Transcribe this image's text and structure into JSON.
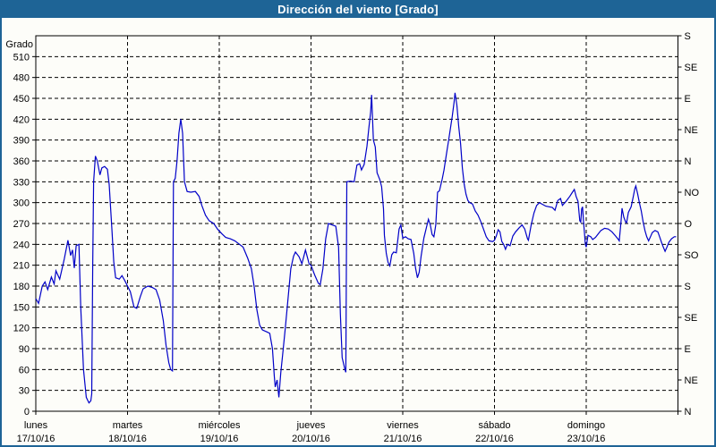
{
  "window": {
    "title": "Dirección del viento [Grado]"
  },
  "colors": {
    "titlebar_bg": "#1e6496",
    "title_text": "#ffffff",
    "window_border": "#1e6496",
    "background": "#fdfdf9",
    "axis": "#000000",
    "grid": "#000000",
    "line": "#0000c8"
  },
  "chart_data": {
    "type": "line",
    "title": "Dirección del viento [Grado]",
    "ylabel_left": "Grado",
    "xlabel": "",
    "ylim": [
      0,
      540
    ],
    "xlim_days": [
      0,
      7
    ],
    "grid": "dashed",
    "legend": "none",
    "y_left_ticks": [
      0,
      30,
      60,
      90,
      120,
      150,
      180,
      210,
      240,
      270,
      300,
      330,
      360,
      390,
      420,
      450,
      480,
      510
    ],
    "y_right_ticks": [
      {
        "value": 0,
        "label": "N"
      },
      {
        "value": 45,
        "label": "NE"
      },
      {
        "value": 90,
        "label": "E"
      },
      {
        "value": 135,
        "label": "SE"
      },
      {
        "value": 180,
        "label": "S"
      },
      {
        "value": 225,
        "label": "SO"
      },
      {
        "value": 270,
        "label": "O"
      },
      {
        "value": 315,
        "label": "NO"
      },
      {
        "value": 360,
        "label": "N"
      },
      {
        "value": 405,
        "label": "NE"
      },
      {
        "value": 450,
        "label": "E"
      },
      {
        "value": 495,
        "label": "SE"
      },
      {
        "value": 540,
        "label": "S"
      }
    ],
    "x_categories": [
      {
        "day": "lunes",
        "date": "17/10/16"
      },
      {
        "day": "martes",
        "date": "18/10/16"
      },
      {
        "day": "miércoles",
        "date": "19/10/16"
      },
      {
        "day": "jueves",
        "date": "20/10/16"
      },
      {
        "day": "viernes",
        "date": "21/10/16"
      },
      {
        "day": "sábado",
        "date": "22/10/16"
      },
      {
        "day": "domingo",
        "date": "23/10/16"
      }
    ],
    "series": [
      {
        "name": "Dirección del viento [Grado]",
        "color": "#0000c8",
        "points": [
          [
            0.0,
            162
          ],
          [
            0.03,
            155
          ],
          [
            0.07,
            180
          ],
          [
            0.1,
            186
          ],
          [
            0.13,
            175
          ],
          [
            0.17,
            193
          ],
          [
            0.2,
            183
          ],
          [
            0.22,
            202
          ],
          [
            0.26,
            190
          ],
          [
            0.31,
            219
          ],
          [
            0.35,
            246
          ],
          [
            0.38,
            224
          ],
          [
            0.4,
            232
          ],
          [
            0.42,
            206
          ],
          [
            0.44,
            238
          ],
          [
            0.47,
            240
          ],
          [
            0.49,
            150
          ],
          [
            0.52,
            60
          ],
          [
            0.55,
            20
          ],
          [
            0.58,
            12
          ],
          [
            0.6,
            15
          ],
          [
            0.61,
            25
          ],
          [
            0.62,
            210
          ],
          [
            0.63,
            330
          ],
          [
            0.65,
            367
          ],
          [
            0.67,
            360
          ],
          [
            0.7,
            340
          ],
          [
            0.72,
            350
          ],
          [
            0.75,
            352
          ],
          [
            0.78,
            348
          ],
          [
            0.8,
            326
          ],
          [
            0.83,
            260
          ],
          [
            0.85,
            215
          ],
          [
            0.87,
            192
          ],
          [
            0.91,
            190
          ],
          [
            0.94,
            195
          ],
          [
            0.97,
            188
          ],
          [
            1.0,
            180
          ],
          [
            1.03,
            172
          ],
          [
            1.07,
            150
          ],
          [
            1.1,
            148
          ],
          [
            1.14,
            165
          ],
          [
            1.17,
            176
          ],
          [
            1.22,
            180
          ],
          [
            1.27,
            178
          ],
          [
            1.31,
            175
          ],
          [
            1.35,
            160
          ],
          [
            1.39,
            130
          ],
          [
            1.42,
            95
          ],
          [
            1.45,
            70
          ],
          [
            1.47,
            60
          ],
          [
            1.49,
            58
          ],
          [
            1.5,
            330
          ],
          [
            1.52,
            335
          ],
          [
            1.54,
            360
          ],
          [
            1.56,
            400
          ],
          [
            1.58,
            420
          ],
          [
            1.6,
            400
          ],
          [
            1.62,
            330
          ],
          [
            1.65,
            316
          ],
          [
            1.69,
            315
          ],
          [
            1.74,
            316
          ],
          [
            1.78,
            309
          ],
          [
            1.81,
            296
          ],
          [
            1.85,
            282
          ],
          [
            1.89,
            274
          ],
          [
            1.94,
            270
          ],
          [
            1.98,
            262
          ],
          [
            2.03,
            255
          ],
          [
            2.07,
            250
          ],
          [
            2.12,
            248
          ],
          [
            2.17,
            245
          ],
          [
            2.22,
            240
          ],
          [
            2.26,
            236
          ],
          [
            2.31,
            220
          ],
          [
            2.35,
            205
          ],
          [
            2.38,
            180
          ],
          [
            2.41,
            146
          ],
          [
            2.44,
            124
          ],
          [
            2.47,
            117
          ],
          [
            2.52,
            114
          ],
          [
            2.55,
            112
          ],
          [
            2.58,
            90
          ],
          [
            2.6,
            50
          ],
          [
            2.61,
            35
          ],
          [
            2.63,
            45
          ],
          [
            2.65,
            20
          ],
          [
            2.67,
            55
          ],
          [
            2.69,
            80
          ],
          [
            2.72,
            120
          ],
          [
            2.75,
            163
          ],
          [
            2.78,
            205
          ],
          [
            2.81,
            223
          ],
          [
            2.83,
            229
          ],
          [
            2.87,
            222
          ],
          [
            2.9,
            212
          ],
          [
            2.94,
            232
          ],
          [
            2.98,
            212
          ],
          [
            3.0,
            210
          ],
          [
            3.04,
            196
          ],
          [
            3.08,
            184
          ],
          [
            3.1,
            182
          ],
          [
            3.13,
            205
          ],
          [
            3.16,
            248
          ],
          [
            3.19,
            270
          ],
          [
            3.23,
            268
          ],
          [
            3.27,
            266
          ],
          [
            3.3,
            236
          ],
          [
            3.32,
            140
          ],
          [
            3.34,
            77
          ],
          [
            3.37,
            60
          ],
          [
            3.38,
            56
          ],
          [
            3.39,
            330
          ],
          [
            3.43,
            331
          ],
          [
            3.47,
            330
          ],
          [
            3.5,
            354
          ],
          [
            3.53,
            356
          ],
          [
            3.55,
            347
          ],
          [
            3.58,
            355
          ],
          [
            3.61,
            381
          ],
          [
            3.63,
            407
          ],
          [
            3.65,
            430
          ],
          [
            3.66,
            455
          ],
          [
            3.68,
            390
          ],
          [
            3.7,
            380
          ],
          [
            3.72,
            343
          ],
          [
            3.75,
            333
          ],
          [
            3.77,
            323
          ],
          [
            3.79,
            291
          ],
          [
            3.8,
            253
          ],
          [
            3.82,
            227
          ],
          [
            3.84,
            214
          ],
          [
            3.86,
            209
          ],
          [
            3.88,
            225
          ],
          [
            3.9,
            229
          ],
          [
            3.93,
            228
          ],
          [
            3.96,
            262
          ],
          [
            3.98,
            268
          ],
          [
            4.0,
            249
          ],
          [
            4.03,
            251
          ],
          [
            4.06,
            248
          ],
          [
            4.09,
            247
          ],
          [
            4.12,
            227
          ],
          [
            4.14,
            206
          ],
          [
            4.16,
            192
          ],
          [
            4.18,
            200
          ],
          [
            4.2,
            223
          ],
          [
            4.23,
            249
          ],
          [
            4.26,
            265
          ],
          [
            4.28,
            276
          ],
          [
            4.3,
            268
          ],
          [
            4.32,
            254
          ],
          [
            4.34,
            251
          ],
          [
            4.36,
            268
          ],
          [
            4.38,
            315
          ],
          [
            4.4,
            317
          ],
          [
            4.43,
            334
          ],
          [
            4.45,
            347
          ],
          [
            4.48,
            373
          ],
          [
            4.5,
            390
          ],
          [
            4.52,
            407
          ],
          [
            4.54,
            424
          ],
          [
            4.56,
            445
          ],
          [
            4.57,
            458
          ],
          [
            4.59,
            440
          ],
          [
            4.61,
            410
          ],
          [
            4.63,
            385
          ],
          [
            4.65,
            350
          ],
          [
            4.67,
            326
          ],
          [
            4.69,
            312
          ],
          [
            4.71,
            303
          ],
          [
            4.73,
            300
          ],
          [
            4.76,
            298
          ],
          [
            4.79,
            288
          ],
          [
            4.82,
            282
          ],
          [
            4.85,
            273
          ],
          [
            4.88,
            262
          ],
          [
            4.91,
            251
          ],
          [
            4.94,
            245
          ],
          [
            4.98,
            244
          ],
          [
            5.0,
            246
          ],
          [
            5.02,
            252
          ],
          [
            5.04,
            261
          ],
          [
            5.06,
            258
          ],
          [
            5.08,
            244
          ],
          [
            5.1,
            240
          ],
          [
            5.12,
            233
          ],
          [
            5.14,
            240
          ],
          [
            5.17,
            238
          ],
          [
            5.2,
            252
          ],
          [
            5.23,
            258
          ],
          [
            5.27,
            264
          ],
          [
            5.3,
            268
          ],
          [
            5.33,
            262
          ],
          [
            5.36,
            248
          ],
          [
            5.37,
            246
          ],
          [
            5.4,
            268
          ],
          [
            5.43,
            285
          ],
          [
            5.46,
            296
          ],
          [
            5.49,
            300
          ],
          [
            5.56,
            295
          ],
          [
            5.63,
            293
          ],
          [
            5.66,
            289
          ],
          [
            5.69,
            303
          ],
          [
            5.72,
            306
          ],
          [
            5.74,
            296
          ],
          [
            5.78,
            302
          ],
          [
            5.82,
            309
          ],
          [
            5.85,
            315
          ],
          [
            5.87,
            319
          ],
          [
            5.89,
            309
          ],
          [
            5.91,
            302
          ],
          [
            5.93,
            274
          ],
          [
            5.94,
            272
          ],
          [
            5.95,
            291
          ],
          [
            5.96,
            294
          ],
          [
            5.97,
            274
          ],
          [
            5.98,
            257
          ],
          [
            5.99,
            240
          ],
          [
            6.0,
            236
          ],
          [
            6.02,
            253
          ],
          [
            6.05,
            251
          ],
          [
            6.07,
            247
          ],
          [
            6.1,
            250
          ],
          [
            6.13,
            255
          ],
          [
            6.16,
            260
          ],
          [
            6.2,
            263
          ],
          [
            6.24,
            262
          ],
          [
            6.28,
            258
          ],
          [
            6.32,
            252
          ],
          [
            6.35,
            247
          ],
          [
            6.36,
            245
          ],
          [
            6.38,
            273
          ],
          [
            6.39,
            292
          ],
          [
            6.41,
            279
          ],
          [
            6.43,
            272
          ],
          [
            6.44,
            271
          ],
          [
            6.46,
            286
          ],
          [
            6.49,
            294
          ],
          [
            6.51,
            307
          ],
          [
            6.53,
            320
          ],
          [
            6.54,
            324
          ],
          [
            6.56,
            313
          ],
          [
            6.58,
            300
          ],
          [
            6.6,
            288
          ],
          [
            6.62,
            272
          ],
          [
            6.64,
            260
          ],
          [
            6.66,
            251
          ],
          [
            6.68,
            245
          ],
          [
            6.7,
            251
          ],
          [
            6.72,
            257
          ],
          [
            6.75,
            260
          ],
          [
            6.78,
            258
          ],
          [
            6.8,
            251
          ],
          [
            6.82,
            243
          ],
          [
            6.84,
            236
          ],
          [
            6.86,
            230
          ],
          [
            6.88,
            236
          ],
          [
            6.9,
            243
          ],
          [
            6.93,
            248
          ],
          [
            6.96,
            251
          ],
          [
            6.98,
            251
          ]
        ]
      }
    ]
  }
}
